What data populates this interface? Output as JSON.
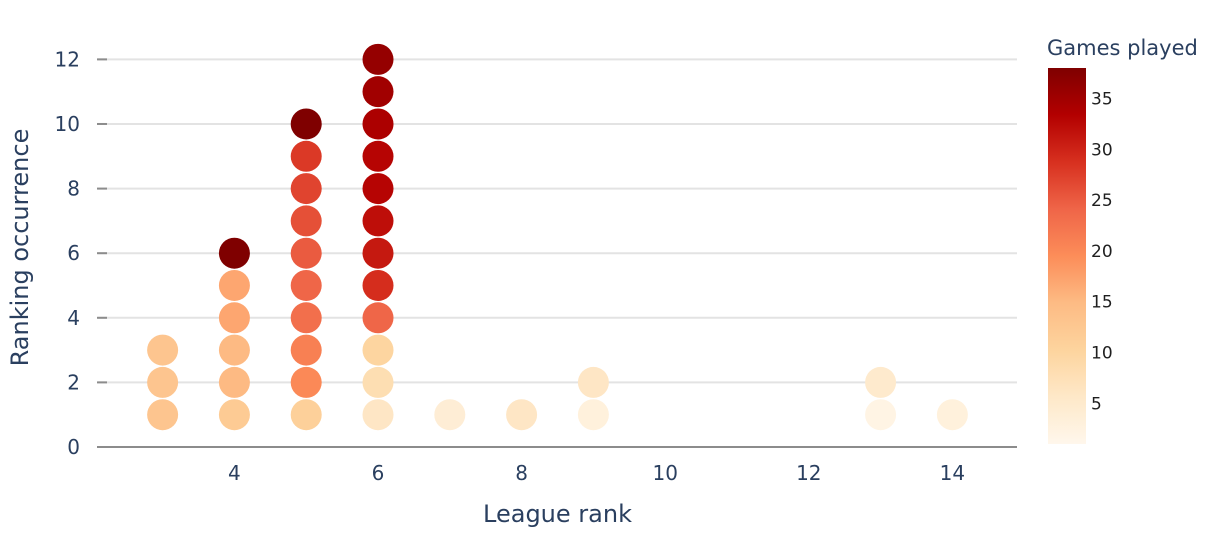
{
  "chart_data": {
    "type": "scatter",
    "xlabel": "League rank",
    "ylabel": "Ranking occurrence",
    "xlim": [
      2.1,
      14.9
    ],
    "ylim": [
      0,
      12.6
    ],
    "x_ticks": [
      4,
      6,
      8,
      10,
      12,
      14
    ],
    "y_ticks": [
      0,
      2,
      4,
      6,
      8,
      10,
      12
    ],
    "grid": true,
    "colorbar": {
      "title": "Games played",
      "range": [
        1,
        38
      ],
      "ticks": [
        5,
        10,
        15,
        20,
        25,
        30,
        35
      ],
      "colorscale": [
        "#fff7ec",
        "#fee8c8",
        "#fdd49e",
        "#fdbb84",
        "#fc8d59",
        "#ef6548",
        "#d7301f",
        "#b30000",
        "#7f0000"
      ]
    },
    "points": [
      {
        "x": 3,
        "y": 1,
        "games": 13
      },
      {
        "x": 3,
        "y": 2,
        "games": 13
      },
      {
        "x": 3,
        "y": 3,
        "games": 13
      },
      {
        "x": 4,
        "y": 1,
        "games": 12
      },
      {
        "x": 4,
        "y": 2,
        "games": 15
      },
      {
        "x": 4,
        "y": 3,
        "games": 15
      },
      {
        "x": 4,
        "y": 4,
        "games": 17
      },
      {
        "x": 4,
        "y": 5,
        "games": 17
      },
      {
        "x": 4,
        "y": 6,
        "games": 38
      },
      {
        "x": 5,
        "y": 1,
        "games": 11
      },
      {
        "x": 5,
        "y": 2,
        "games": 20
      },
      {
        "x": 5,
        "y": 3,
        "games": 21
      },
      {
        "x": 5,
        "y": 4,
        "games": 23
      },
      {
        "x": 5,
        "y": 5,
        "games": 24
      },
      {
        "x": 5,
        "y": 6,
        "games": 25
      },
      {
        "x": 5,
        "y": 7,
        "games": 26
      },
      {
        "x": 5,
        "y": 8,
        "games": 27
      },
      {
        "x": 5,
        "y": 9,
        "games": 28
      },
      {
        "x": 5,
        "y": 10,
        "games": 38
      },
      {
        "x": 6,
        "y": 1,
        "games": 6
      },
      {
        "x": 6,
        "y": 2,
        "games": 8
      },
      {
        "x": 6,
        "y": 3,
        "games": 10
      },
      {
        "x": 6,
        "y": 4,
        "games": 24
      },
      {
        "x": 6,
        "y": 5,
        "games": 29
      },
      {
        "x": 6,
        "y": 6,
        "games": 31
      },
      {
        "x": 6,
        "y": 7,
        "games": 32
      },
      {
        "x": 6,
        "y": 8,
        "games": 33
      },
      {
        "x": 6,
        "y": 9,
        "games": 33
      },
      {
        "x": 6,
        "y": 10,
        "games": 34
      },
      {
        "x": 6,
        "y": 11,
        "games": 35
      },
      {
        "x": 6,
        "y": 12,
        "games": 36
      },
      {
        "x": 7,
        "y": 1,
        "games": 4
      },
      {
        "x": 8,
        "y": 1,
        "games": 6
      },
      {
        "x": 9,
        "y": 1,
        "games": 3
      },
      {
        "x": 9,
        "y": 2,
        "games": 6
      },
      {
        "x": 13,
        "y": 1,
        "games": 2
      },
      {
        "x": 13,
        "y": 2,
        "games": 5
      },
      {
        "x": 14,
        "y": 1,
        "games": 3
      }
    ]
  }
}
